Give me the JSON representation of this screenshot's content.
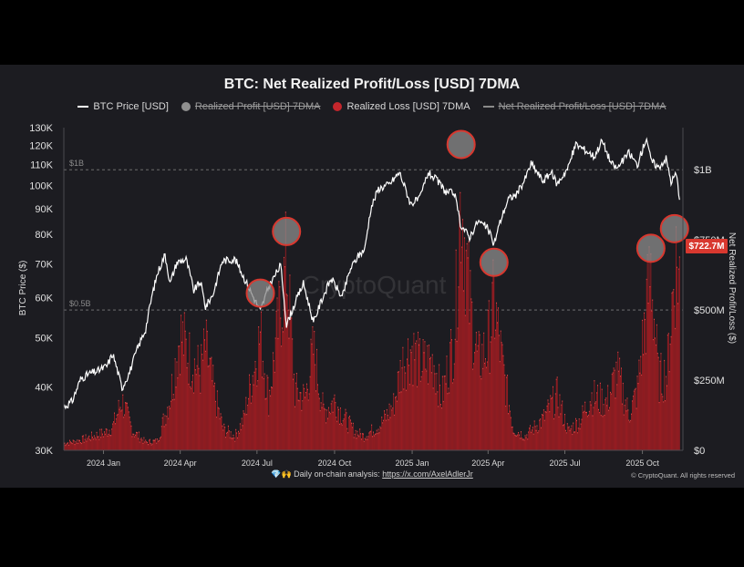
{
  "chart_data": {
    "type": "bar+line",
    "title": "BTC: Net Realized Profit/Loss [USD] 7DMA",
    "legend": [
      {
        "label": "BTC Price [USD]",
        "kind": "line",
        "color": "#ffffff",
        "active": true
      },
      {
        "label": "Realized Profit [USD] 7DMA",
        "kind": "dot",
        "color": "#8f8f8f",
        "active": false
      },
      {
        "label": "Realized Loss [USD] 7DMA",
        "kind": "dot",
        "color": "#c4262c",
        "active": true
      },
      {
        "label": "Net Realized Profit/Loss [USD] 7DMA",
        "kind": "line",
        "color": "#8a8a8a",
        "active": false
      }
    ],
    "y_left_label": "BTC Price ($)",
    "y_right_label": "Net Realized Profit/Loss ($)",
    "y_left_ticks": [
      "130K",
      "120K",
      "110K",
      "100K",
      "90K",
      "80K",
      "70K",
      "60K",
      "50K",
      "40K",
      "30K"
    ],
    "y_left_tick_values": [
      130000,
      120000,
      110000,
      100000,
      90000,
      80000,
      70000,
      60000,
      50000,
      40000,
      30000
    ],
    "y_left_scale": "log",
    "y_left_range": [
      30000,
      130000
    ],
    "y_right_ticks": [
      "$1B",
      "$750M",
      "$500M",
      "$250M",
      "$0"
    ],
    "y_right_tick_values": [
      1000000000,
      750000000,
      500000000,
      250000000,
      0
    ],
    "y_right_range": [
      0,
      1150000000
    ],
    "x_ticks": [
      "2024 Jan",
      "2024 Apr",
      "2024 Jul",
      "2024 Oct",
      "2025 Jan",
      "2025 Apr",
      "2025 Jul",
      "2025 Oct"
    ],
    "x_tick_dates": [
      "2024-01-01",
      "2024-04-01",
      "2024-07-01",
      "2024-10-01",
      "2025-01-01",
      "2025-04-01",
      "2025-07-01",
      "2025-10-01"
    ],
    "x_range": [
      "2023-11-15",
      "2025-11-18"
    ],
    "reference_lines": [
      {
        "label": "$1B",
        "value": 1000000000
      },
      {
        "label": "$0.5B",
        "value": 500000000
      }
    ],
    "current_value_tag": "$722.7M",
    "current_value": 722700000,
    "price_series": [
      [
        "2023-11-15",
        36500
      ],
      [
        "2023-11-25",
        37500
      ],
      [
        "2023-12-05",
        41500
      ],
      [
        "2023-12-15",
        42500
      ],
      [
        "2023-12-25",
        43000
      ],
      [
        "2024-01-05",
        44000
      ],
      [
        "2024-01-12",
        46500
      ],
      [
        "2024-01-23",
        39800
      ],
      [
        "2024-02-01",
        42800
      ],
      [
        "2024-02-10",
        47500
      ],
      [
        "2024-02-20",
        52000
      ],
      [
        "2024-02-28",
        61000
      ],
      [
        "2024-03-05",
        67000
      ],
      [
        "2024-03-14",
        73000
      ],
      [
        "2024-03-20",
        64000
      ],
      [
        "2024-03-28",
        70500
      ],
      [
        "2024-04-08",
        71500
      ],
      [
        "2024-04-17",
        62000
      ],
      [
        "2024-04-25",
        64500
      ],
      [
        "2024-05-01",
        57500
      ],
      [
        "2024-05-10",
        61000
      ],
      [
        "2024-05-21",
        71000
      ],
      [
        "2024-06-05",
        71500
      ],
      [
        "2024-06-15",
        66000
      ],
      [
        "2024-06-25",
        61000
      ],
      [
        "2024-07-05",
        56500
      ],
      [
        "2024-07-15",
        63000
      ],
      [
        "2024-07-29",
        69500
      ],
      [
        "2024-08-05",
        53000
      ],
      [
        "2024-08-15",
        58500
      ],
      [
        "2024-08-25",
        64000
      ],
      [
        "2024-09-06",
        53500
      ],
      [
        "2024-09-15",
        59000
      ],
      [
        "2024-09-27",
        65500
      ],
      [
        "2024-10-10",
        60000
      ],
      [
        "2024-10-20",
        68500
      ],
      [
        "2024-10-29",
        72500
      ],
      [
        "2024-11-06",
        75000
      ],
      [
        "2024-11-13",
        90000
      ],
      [
        "2024-11-22",
        98500
      ],
      [
        "2024-12-05",
        100500
      ],
      [
        "2024-12-17",
        106000
      ],
      [
        "2024-12-30",
        92000
      ],
      [
        "2025-01-10",
        94000
      ],
      [
        "2025-01-20",
        106000
      ],
      [
        "2025-01-31",
        102000
      ],
      [
        "2025-02-10",
        97000
      ],
      [
        "2025-02-20",
        96500
      ],
      [
        "2025-02-27",
        84000
      ],
      [
        "2025-03-10",
        79000
      ],
      [
        "2025-03-20",
        85000
      ],
      [
        "2025-03-31",
        82500
      ],
      [
        "2025-04-08",
        76500
      ],
      [
        "2025-04-15",
        84500
      ],
      [
        "2025-04-25",
        94000
      ],
      [
        "2025-05-05",
        96000
      ],
      [
        "2025-05-15",
        103000
      ],
      [
        "2025-05-22",
        110500
      ],
      [
        "2025-06-05",
        102000
      ],
      [
        "2025-06-15",
        106000
      ],
      [
        "2025-06-22",
        100500
      ],
      [
        "2025-07-05",
        108500
      ],
      [
        "2025-07-14",
        120500
      ],
      [
        "2025-07-25",
        117500
      ],
      [
        "2025-08-05",
        114000
      ],
      [
        "2025-08-14",
        122500
      ],
      [
        "2025-08-25",
        110500
      ],
      [
        "2025-09-01",
        108000
      ],
      [
        "2025-09-15",
        116000
      ],
      [
        "2025-09-25",
        109500
      ],
      [
        "2025-10-06",
        124500
      ],
      [
        "2025-10-11",
        112000
      ],
      [
        "2025-10-20",
        108500
      ],
      [
        "2025-10-29",
        113000
      ],
      [
        "2025-11-04",
        101500
      ],
      [
        "2025-11-10",
        105500
      ],
      [
        "2025-11-14",
        94500
      ]
    ],
    "realized_loss_series": [
      [
        "2023-11-15",
        30000000
      ],
      [
        "2023-12-01",
        40000000
      ],
      [
        "2023-12-15",
        55000000
      ],
      [
        "2024-01-03",
        75000000
      ],
      [
        "2024-01-12",
        100000000
      ],
      [
        "2024-01-23",
        210000000
      ],
      [
        "2024-02-05",
        80000000
      ],
      [
        "2024-02-20",
        35000000
      ],
      [
        "2024-03-05",
        40000000
      ],
      [
        "2024-03-20",
        220000000
      ],
      [
        "2024-04-01",
        490000000
      ],
      [
        "2024-04-13",
        380000000
      ],
      [
        "2024-04-25",
        330000000
      ],
      [
        "2024-05-01",
        430000000
      ],
      [
        "2024-05-12",
        230000000
      ],
      [
        "2024-05-22",
        90000000
      ],
      [
        "2024-06-05",
        60000000
      ],
      [
        "2024-06-15",
        130000000
      ],
      [
        "2024-06-25",
        300000000
      ],
      [
        "2024-07-05",
        480000000
      ],
      [
        "2024-07-15",
        220000000
      ],
      [
        "2024-08-05",
        780000000
      ],
      [
        "2024-08-15",
        250000000
      ],
      [
        "2024-08-27",
        220000000
      ],
      [
        "2024-09-06",
        420000000
      ],
      [
        "2024-09-18",
        160000000
      ],
      [
        "2024-10-01",
        210000000
      ],
      [
        "2024-10-12",
        140000000
      ],
      [
        "2024-10-25",
        80000000
      ],
      [
        "2024-11-05",
        60000000
      ],
      [
        "2024-11-25",
        110000000
      ],
      [
        "2024-12-10",
        190000000
      ],
      [
        "2024-12-20",
        360000000
      ],
      [
        "2024-12-31",
        430000000
      ],
      [
        "2025-01-10",
        360000000
      ],
      [
        "2025-01-27",
        370000000
      ],
      [
        "2025-02-05",
        220000000
      ],
      [
        "2025-02-20",
        470000000
      ],
      [
        "2025-02-28",
        1080000000
      ],
      [
        "2025-03-10",
        620000000
      ],
      [
        "2025-03-20",
        370000000
      ],
      [
        "2025-03-31",
        430000000
      ],
      [
        "2025-04-08",
        620000000
      ],
      [
        "2025-04-18",
        360000000
      ],
      [
        "2025-05-01",
        90000000
      ],
      [
        "2025-05-15",
        60000000
      ],
      [
        "2025-06-05",
        130000000
      ],
      [
        "2025-06-22",
        230000000
      ],
      [
        "2025-07-05",
        80000000
      ],
      [
        "2025-07-20",
        130000000
      ],
      [
        "2025-08-01",
        230000000
      ],
      [
        "2025-08-20",
        200000000
      ],
      [
        "2025-09-01",
        330000000
      ],
      [
        "2025-09-15",
        150000000
      ],
      [
        "2025-09-25",
        250000000
      ],
      [
        "2025-10-11",
        760000000
      ],
      [
        "2025-10-20",
        300000000
      ],
      [
        "2025-10-30",
        320000000
      ],
      [
        "2025-11-05",
        610000000
      ],
      [
        "2025-11-10",
        790000000
      ],
      [
        "2025-11-14",
        722700000
      ]
    ],
    "highlight_circles": [
      {
        "date": "2024-07-05",
        "value": 560000000
      },
      {
        "date": "2024-08-05",
        "value": 780000000
      },
      {
        "date": "2025-02-28",
        "value": 1090000000
      },
      {
        "date": "2025-04-08",
        "value": 670000000
      },
      {
        "date": "2025-10-11",
        "value": 720000000
      },
      {
        "date": "2025-11-08",
        "value": 790000000
      }
    ],
    "watermark": "CryptoQuant"
  },
  "footer": {
    "icons": "💎🙌",
    "text": "Daily on-chain analysis: ",
    "link": "https://x.com/AxelAdlerJr",
    "copyright": "© CryptoQuant. All rights reserved"
  },
  "colors": {
    "background": "#1c1c21",
    "loss_bar": "#8b1a1e",
    "loss_bar_top": "#d63a3a",
    "price_line": "#ffffff",
    "tag": "#d8382f"
  }
}
